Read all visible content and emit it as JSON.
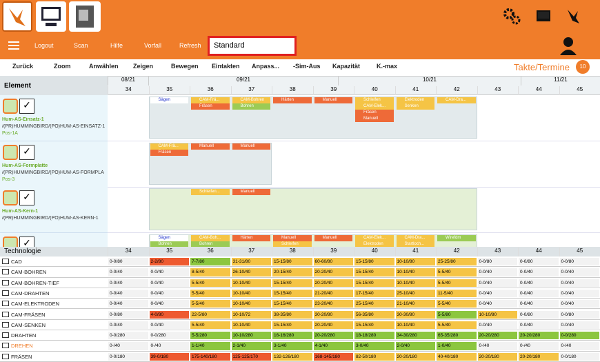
{
  "header": {
    "menu": [
      "Logout",
      "Scan",
      "Hilfe",
      "Vorfall",
      "Refresh"
    ],
    "search": "Standard"
  },
  "actions": {
    "buttons": [
      "Zurück",
      "Zoom",
      "Anwählen",
      "Zeigen",
      "Bewegen",
      "Eintakten",
      "Anpass...",
      "-Sim-Aus",
      "Kapazität",
      "K.-max"
    ],
    "mode": "Takte/Termine",
    "badge": "10"
  },
  "timeline": {
    "months": [
      "08/21",
      "09/21",
      "10/21",
      "11/21"
    ],
    "weeks": [
      34,
      35,
      36,
      37,
      38,
      39,
      40,
      41,
      42,
      43,
      44,
      45
    ]
  },
  "elements": {
    "title": "Element",
    "items": [
      {
        "name": "Hum-AS-Einsatz-1",
        "path": "/(PR)HUMMINGBIRD/(PO)HUM-AS-EINSATZ-1",
        "pos": "Pos-1A",
        "bars": [
          [
            "Sägen"
          ],
          [
            "CAM-Frä...",
            "Fräsen"
          ],
          [
            "CAM-Bohren",
            "Bohren"
          ],
          [
            "Härten"
          ],
          [
            "Manuell"
          ],
          [
            "Schleifen",
            "CAM-Elek...",
            "Fräsen",
            "Manuell"
          ],
          [
            "Elektroden",
            "Senken"
          ],
          [
            "CAM-Dra..."
          ]
        ]
      },
      {
        "name": "Hum-AS-Formplatte",
        "path": "/(PR)HUMMINGBIRD/(PO)HUM-AS-FORMPLA",
        "pos": "Pos-3",
        "bars": [
          [
            "CAM-Frä...",
            "Fräsen"
          ],
          [
            "Manuell"
          ],
          [
            "Manuell"
          ]
        ]
      },
      {
        "name": "Hum-AS-Kern-1",
        "path": "/(PR)HUMMINGBIRD/(PO)HUM-AS-KERN-1",
        "pos": "",
        "bars": [
          [
            "Schleifen..."
          ],
          [
            "Manuell"
          ]
        ]
      },
      {
        "name": "",
        "path": "",
        "pos": "",
        "bars": [
          [
            "Sägen",
            "Bohren"
          ],
          [
            "CAM-Boh...",
            "Bohren"
          ],
          [
            "Härten"
          ],
          [
            "Manuell",
            "Schleifen"
          ],
          [
            "Manuell"
          ],
          [
            "CAM-Elek...",
            "Elektroden"
          ],
          [
            "CAM-Dra...",
            "Startloch..."
          ],
          [
            "Wirefdm"
          ]
        ]
      }
    ]
  },
  "technology": {
    "title": "Technologie",
    "rows": [
      {
        "name": "CAD",
        "cells": [
          "0-0/80",
          "2-2/80",
          "7-7/80",
          "31-31/80",
          "15-15/80",
          "60-60/80",
          "15-15/80",
          "10-10/80",
          "25-25/80",
          "0-0/80",
          "0-0/80",
          "0-0/80"
        ]
      },
      {
        "name": "CAM-BOHREN",
        "cells": [
          "0-0/40",
          "0-0/40",
          "8-5/40",
          "26-10/40",
          "20-15/40",
          "20-20/40",
          "15-15/40",
          "10-10/40",
          "5-5/40",
          "0-0/40",
          "0-0/40",
          "0-0/40"
        ]
      },
      {
        "name": "CAM-BOHREN-TIEF",
        "cells": [
          "0-0/40",
          "0-0/40",
          "5-5/40",
          "10-10/40",
          "15-15/40",
          "20-20/40",
          "15-15/40",
          "10-10/40",
          "5-5/40",
          "0-0/40",
          "0-0/40",
          "0-0/40"
        ]
      },
      {
        "name": "CAM-DRAHTEN",
        "cells": [
          "0-0/40",
          "0-0/40",
          "5-5/40",
          "10-10/40",
          "15-15/40",
          "21-20/40",
          "17-15/40",
          "25-10/40",
          "11-5/40",
          "0-0/40",
          "0-0/40",
          "0-0/40"
        ]
      },
      {
        "name": "CAM-ELEKTRODEN",
        "cells": [
          "0-0/40",
          "0-0/40",
          "5-5/40",
          "10-10/40",
          "15-15/40",
          "23-20/40",
          "25-15/40",
          "21-10/40",
          "5-5/40",
          "0-0/40",
          "0-0/40",
          "0-0/40"
        ]
      },
      {
        "name": "CAM-FRÄSEN",
        "cells": [
          "0-0/80",
          "4-0/80",
          "22-5/80",
          "10-10/72",
          "38-35/80",
          "30-20/80",
          "56-35/80",
          "30-30/80",
          "5-5/80",
          "10-10/80",
          "0-0/80",
          "0-0/80"
        ]
      },
      {
        "name": "CAM-SENKEN",
        "cells": [
          "0-0/40",
          "0-0/40",
          "5-5/40",
          "10-10/40",
          "15-15/40",
          "20-20/40",
          "15-15/40",
          "10-10/40",
          "5-5/40",
          "0-0/40",
          "0-0/40",
          "0-0/40"
        ]
      },
      {
        "name": "DRAHTEN",
        "cells": [
          "0-0/280",
          "0-0/280",
          "5-5/280",
          "10-10/280",
          "16-16/280",
          "20-20/280",
          "18-18/280",
          "34-30/280",
          "65-35/280",
          "20-20/280",
          "20-20/280",
          "0-0/280"
        ]
      },
      {
        "name": "DREHEN",
        "cells": [
          "0-/40",
          "0-/40",
          "1-1/40",
          "2-1/40",
          "3-1/40",
          "4-1/40",
          "3-0/40",
          "2-0/40",
          "1-0/40",
          "0-/40",
          "0-/40",
          "0-/40"
        ]
      },
      {
        "name": "FRÄSEN",
        "cells": [
          "0-0/180",
          "39-0/180",
          "175-140/180",
          "125-125/170",
          "132-126/180",
          "168-145/180",
          "82-50/180",
          "20-20/180",
          "40-40/180",
          "20-20/180",
          "20-20/180",
          "0-0/180"
        ]
      }
    ]
  }
}
